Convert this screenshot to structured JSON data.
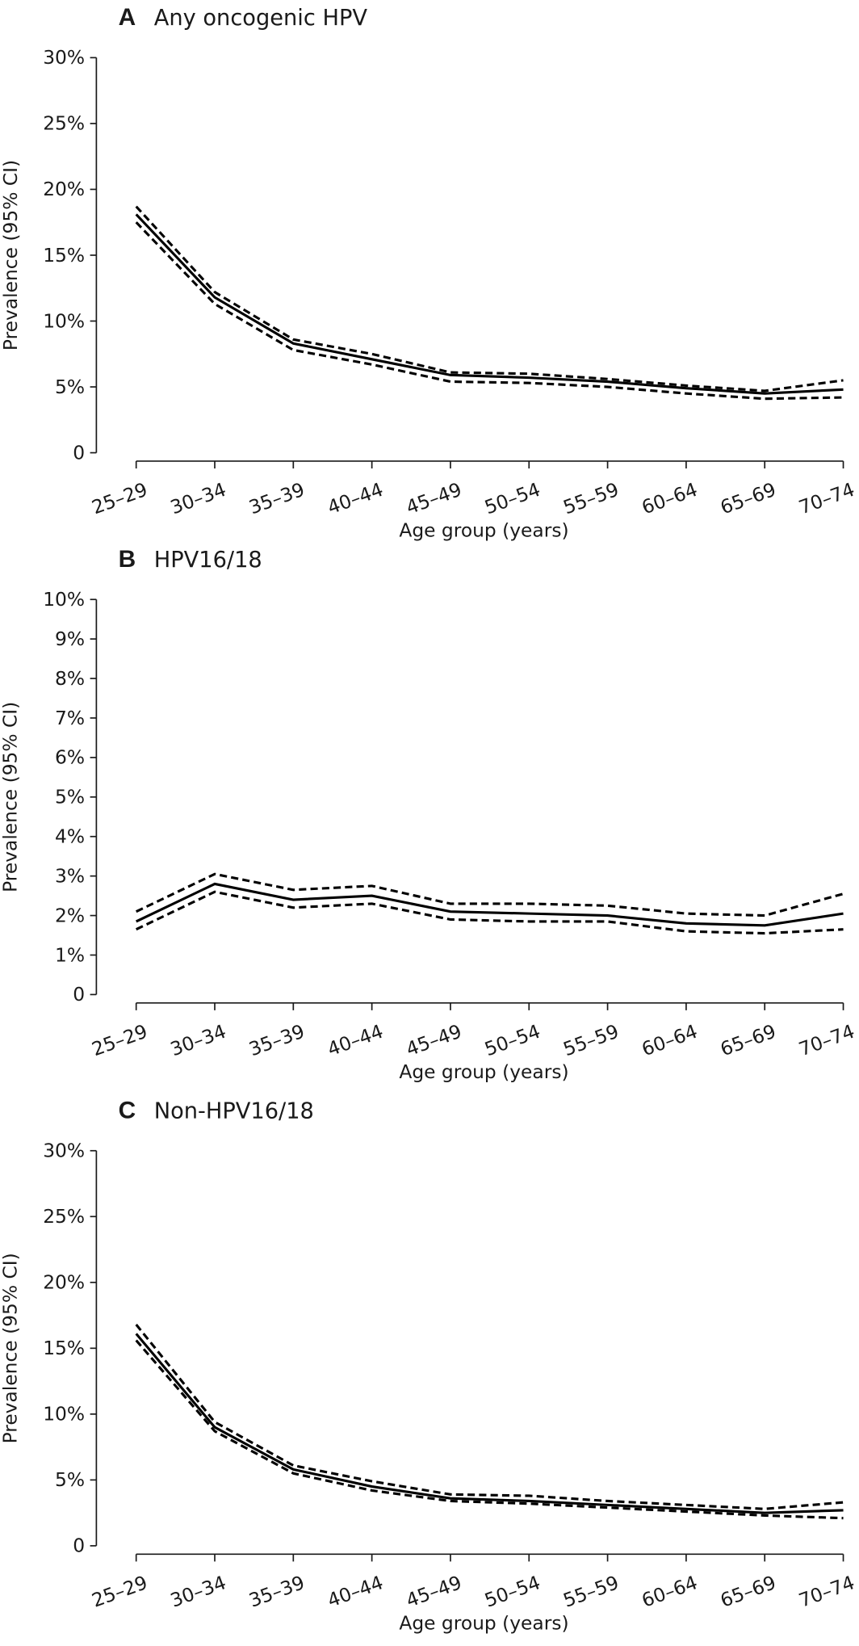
{
  "chart_data": [
    {
      "type": "line",
      "panel": "A",
      "title": "Any oncogenic HPV",
      "x_label": "Age group (years)",
      "y_label": "Prevalence (95% CI)",
      "categories": [
        "25–29",
        "30–34",
        "35–39",
        "40–44",
        "45–49",
        "50–54",
        "55–59",
        "60–64",
        "65–69",
        "70–74"
      ],
      "series": [
        {
          "color": "#000000",
          "dashed": false,
          "values": [
            18.1,
            11.8,
            8.3,
            7.1,
            5.9,
            5.7,
            5.4,
            4.9,
            4.5,
            4.8
          ]
        },
        {
          "color": "#000000",
          "dashed": true,
          "values": [
            18.7,
            12.2,
            8.6,
            7.5,
            6.1,
            6.0,
            5.6,
            5.1,
            4.7,
            5.5
          ]
        },
        {
          "color": "#000000",
          "dashed": true,
          "values": [
            17.5,
            11.3,
            7.8,
            6.7,
            5.4,
            5.3,
            5.0,
            4.5,
            4.1,
            4.2
          ]
        }
      ],
      "ylim": [
        0,
        30
      ],
      "yticks": [
        0,
        {
          "value": 5,
          "label": "5%"
        },
        {
          "value": 10,
          "label": "10%"
        },
        {
          "value": 15,
          "label": "15%"
        },
        {
          "value": 20,
          "label": "20%"
        },
        {
          "value": 25,
          "label": "25%"
        },
        {
          "value": 30,
          "label": "30%"
        }
      ]
    },
    {
      "type": "line",
      "panel": "B",
      "title": "HPV16/18",
      "x_label": "Age group (years)",
      "y_label": "Prevalence (95% CI)",
      "categories": [
        "25–29",
        "30–34",
        "35–39",
        "40–44",
        "45–49",
        "50–54",
        "55–59",
        "60–64",
        "65–69",
        "70–74"
      ],
      "series": [
        {
          "color": "#000000",
          "dashed": false,
          "values": [
            1.85,
            2.8,
            2.4,
            2.5,
            2.1,
            2.05,
            2.0,
            1.8,
            1.75,
            2.05
          ]
        },
        {
          "color": "#000000",
          "dashed": true,
          "values": [
            2.1,
            3.05,
            2.65,
            2.75,
            2.3,
            2.3,
            2.25,
            2.05,
            2.0,
            2.55
          ]
        },
        {
          "color": "#000000",
          "dashed": true,
          "values": [
            1.65,
            2.6,
            2.2,
            2.3,
            1.9,
            1.85,
            1.85,
            1.6,
            1.55,
            1.65
          ]
        }
      ],
      "ylim": [
        0,
        10
      ],
      "yticks": [
        0,
        {
          "value": 1,
          "label": "1%"
        },
        {
          "value": 2,
          "label": "2%"
        },
        {
          "value": 3,
          "label": "3%"
        },
        {
          "value": 4,
          "label": "4%"
        },
        {
          "value": 5,
          "label": "5%"
        },
        {
          "value": 6,
          "label": "6%"
        },
        {
          "value": 7,
          "label": "7%"
        },
        {
          "value": 8,
          "label": "8%"
        },
        {
          "value": 9,
          "label": "9%"
        },
        {
          "value": 10,
          "label": "10%"
        }
      ]
    },
    {
      "type": "line",
      "panel": "C",
      "title": "Non-HPV16/18",
      "x_label": "Age group (years)",
      "y_label": "Prevalence (95% CI)",
      "categories": [
        "25–29",
        "30–34",
        "35–39",
        "40–44",
        "45–49",
        "50–54",
        "55–59",
        "60–64",
        "65–69",
        "70–74"
      ],
      "series": [
        {
          "color": "#000000",
          "dashed": false,
          "values": [
            16.1,
            9.0,
            5.8,
            4.5,
            3.6,
            3.4,
            3.1,
            2.8,
            2.5,
            2.7
          ]
        },
        {
          "color": "#000000",
          "dashed": true,
          "values": [
            16.8,
            9.4,
            6.1,
            4.9,
            3.9,
            3.8,
            3.4,
            3.1,
            2.8,
            3.3
          ]
        },
        {
          "color": "#000000",
          "dashed": true,
          "values": [
            15.6,
            8.7,
            5.5,
            4.2,
            3.4,
            3.2,
            2.9,
            2.6,
            2.3,
            2.1
          ]
        }
      ],
      "ylim": [
        0,
        30
      ],
      "yticks": [
        0,
        {
          "value": 5,
          "label": "5%"
        },
        {
          "value": 10,
          "label": "10%"
        },
        {
          "value": 15,
          "label": "15%"
        },
        {
          "value": 20,
          "label": "20%"
        },
        {
          "value": 25,
          "label": "25%"
        },
        {
          "value": 30,
          "label": "30%"
        }
      ]
    }
  ]
}
